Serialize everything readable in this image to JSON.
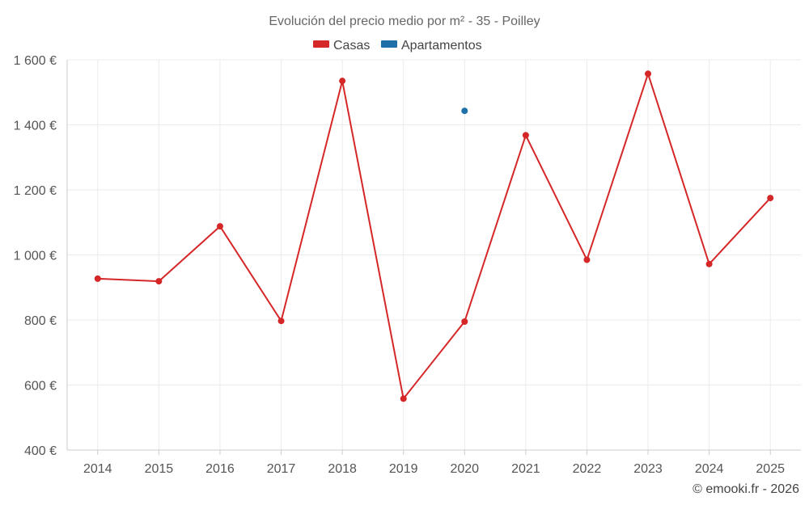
{
  "chart_data": {
    "type": "line",
    "title": "Evolución del precio medio por m² - 35 - Poilley",
    "categories": [
      "2014",
      "2015",
      "2016",
      "2017",
      "2018",
      "2019",
      "2020",
      "2021",
      "2022",
      "2023",
      "2024",
      "2025"
    ],
    "series": [
      {
        "name": "Casas",
        "color": "#d62728",
        "values": [
          927,
          919,
          1088,
          797,
          1535,
          558,
          795,
          1368,
          985,
          1557,
          972,
          1175
        ]
      },
      {
        "name": "Apartamentos",
        "color": "#1f6fa8",
        "values": [
          null,
          null,
          null,
          null,
          null,
          null,
          1443,
          null,
          null,
          null,
          null,
          null
        ]
      }
    ],
    "ylim": [
      400,
      1600
    ],
    "yticks": [
      400,
      600,
      800,
      1000,
      1200,
      1400,
      1600
    ],
    "ytick_labels": [
      "400 €",
      "600 €",
      "800 €",
      "1 000 €",
      "1 200 €",
      "1 400 €",
      "1 600 €"
    ],
    "grid": true,
    "legend_position": "top-center",
    "xlabel": "",
    "ylabel": ""
  },
  "credit": "© emooki.fr - 2026"
}
